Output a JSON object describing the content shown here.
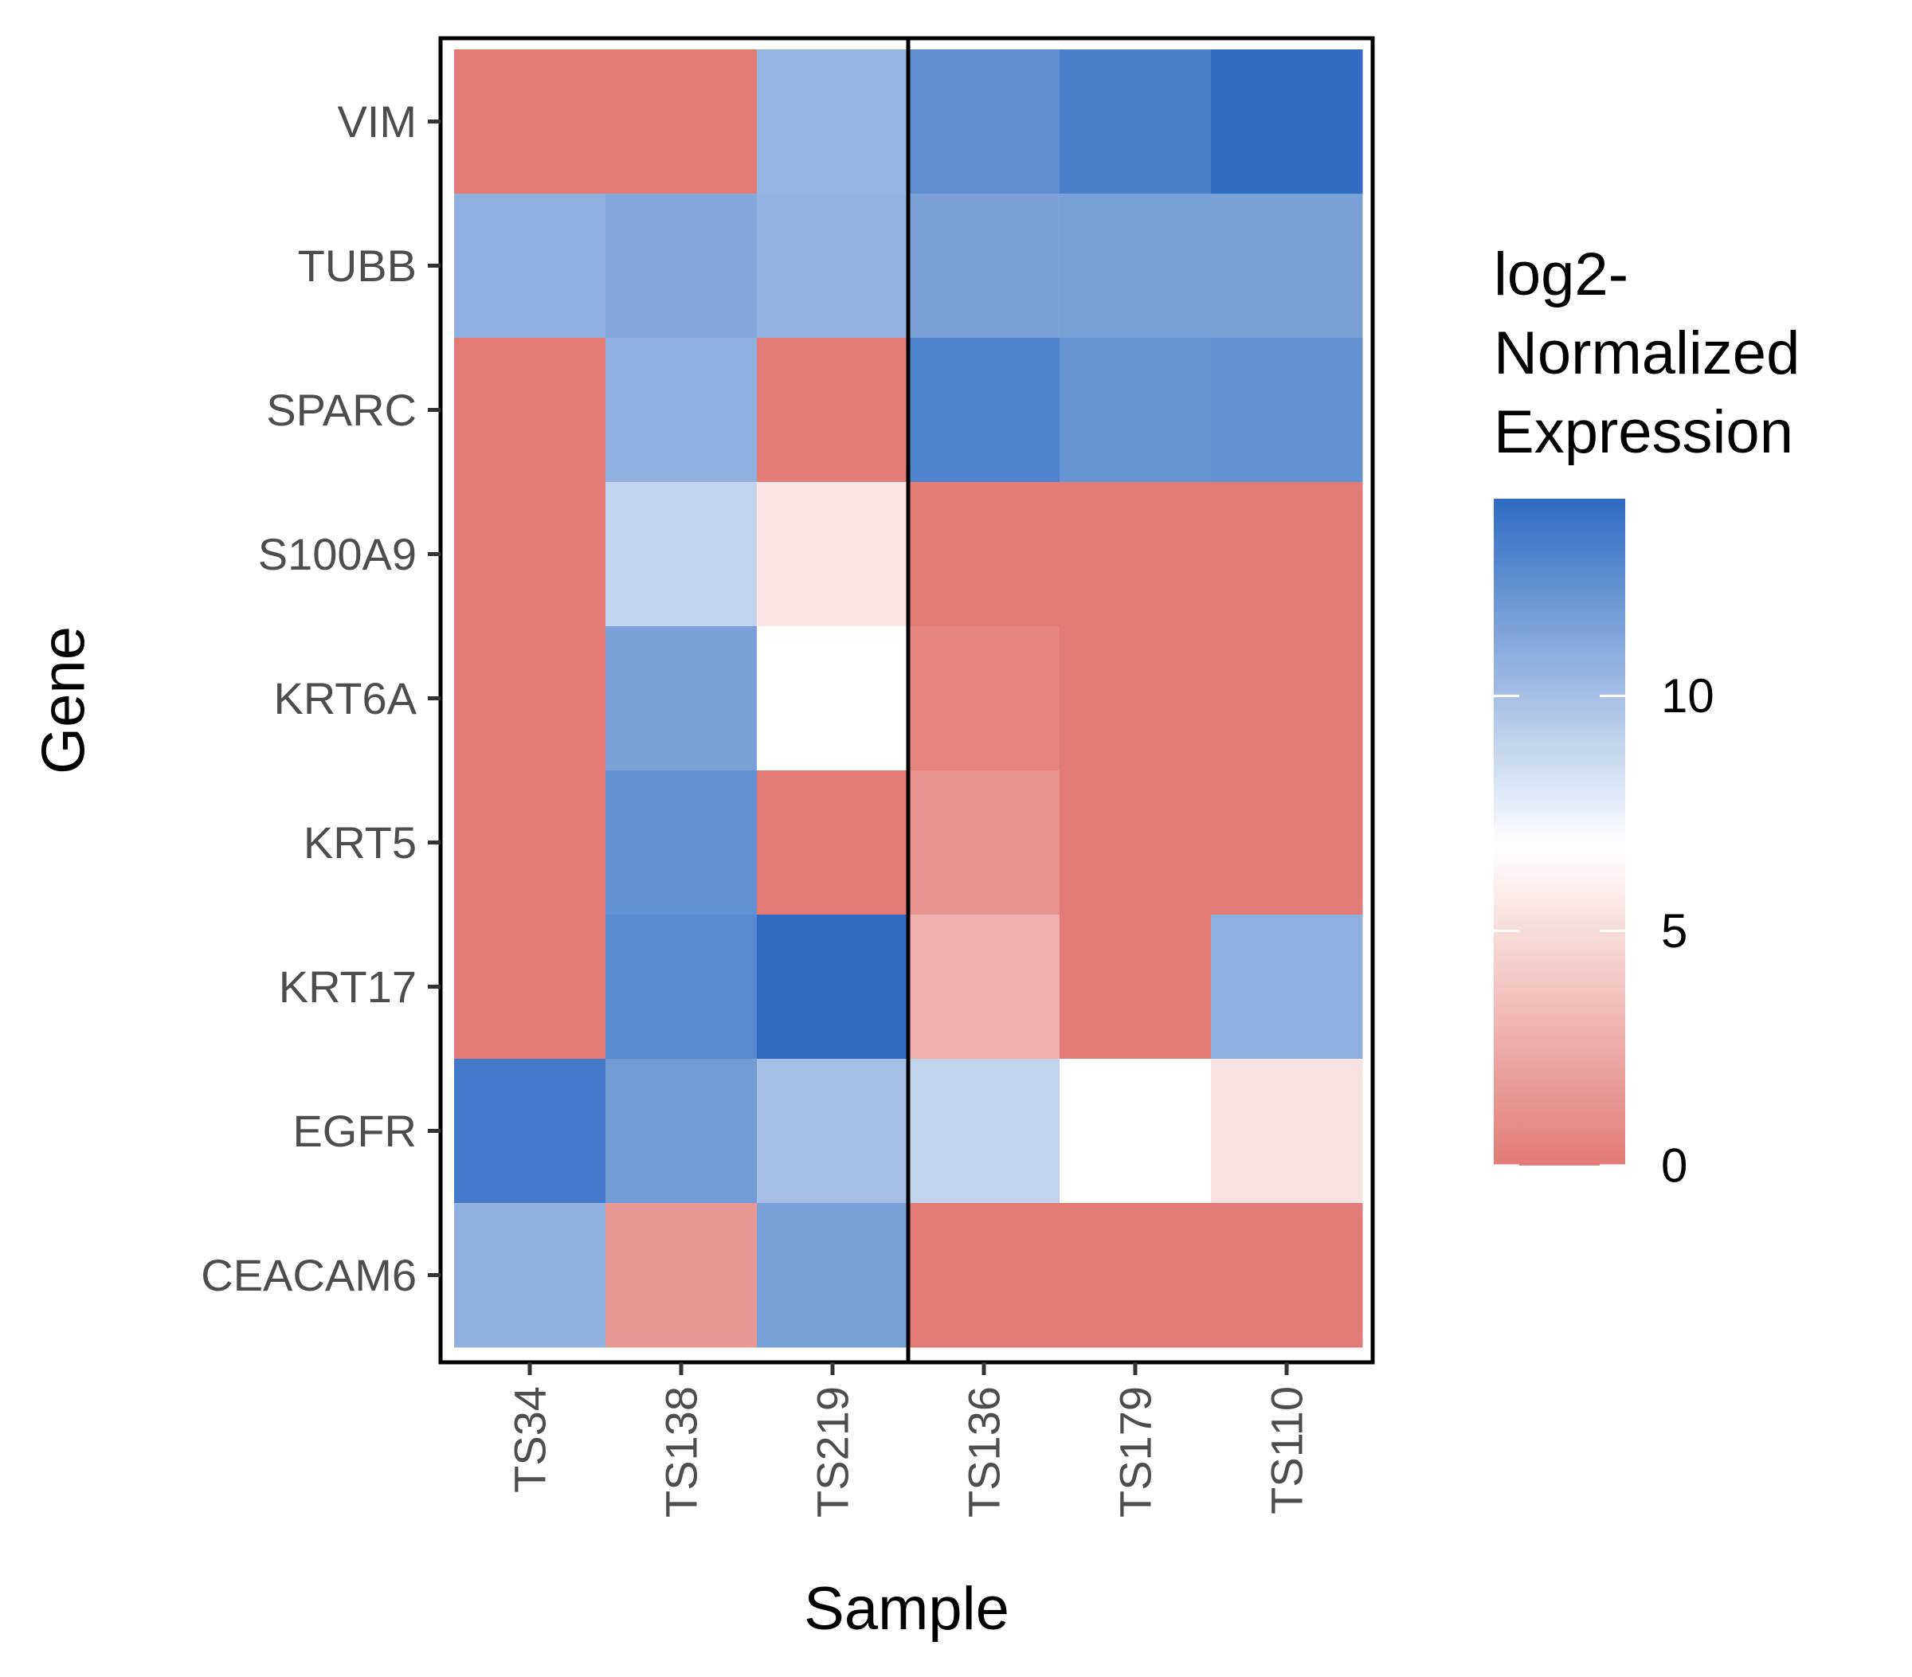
{
  "chart_data": {
    "type": "heatmap",
    "xlabel": "Sample",
    "ylabel": "Gene",
    "x_categories": [
      "TS34",
      "TS138",
      "TS219",
      "TS136",
      "TS179",
      "TS110"
    ],
    "y_categories": [
      "VIM",
      "TUBB",
      "SPARC",
      "S100A9",
      "KRT6A",
      "KRT5",
      "KRT17",
      "EGFR",
      "CEACAM6"
    ],
    "values": [
      [
        0,
        0,
        10.5,
        12.5,
        13.2,
        14.2
      ],
      [
        10.8,
        11.2,
        10.6,
        11.5,
        11.6,
        11.5
      ],
      [
        0,
        10.8,
        0,
        13.0,
        12.2,
        12.3
      ],
      [
        0,
        9.0,
        5.5,
        0,
        0,
        0
      ],
      [
        0,
        11.5,
        6.8,
        0.5,
        0,
        0
      ],
      [
        0,
        12.3,
        0,
        1.2,
        0,
        0
      ],
      [
        0,
        12.7,
        14.2,
        2.8,
        0,
        10.8
      ],
      [
        13.5,
        11.8,
        10.0,
        9.0,
        6.8,
        5.3
      ],
      [
        10.7,
        1.5,
        11.6,
        0,
        0,
        0
      ]
    ],
    "group_separator_after_index": 2,
    "legend": {
      "title_lines": [
        "log2-",
        "Normalized",
        "Expression"
      ],
      "ticks": [
        0,
        5,
        10
      ],
      "range": [
        0,
        14.2
      ],
      "position": "right"
    },
    "colors": {
      "low": "#e27b75",
      "mid": "#ffffff",
      "high": "#2f6bc2",
      "mid_value": 6.8,
      "max_value": 14.2
    }
  }
}
